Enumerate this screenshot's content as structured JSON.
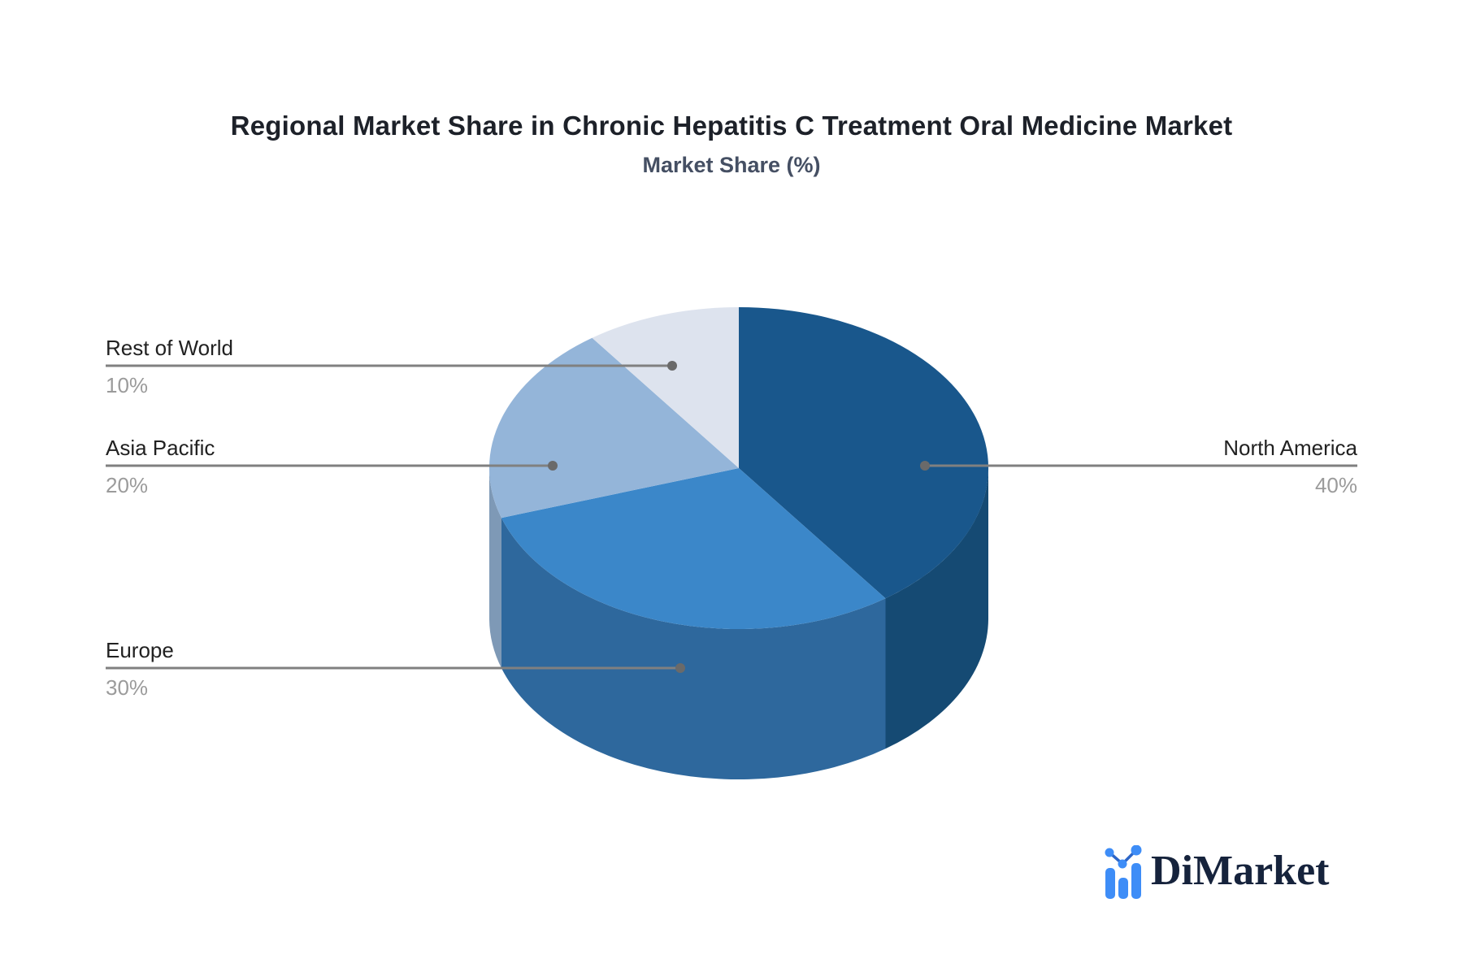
{
  "chart_data": {
    "type": "pie",
    "title": "Regional Market Share in Chronic Hepatitis C Treatment Oral Medicine Market",
    "subtitle": "Market Share (%)",
    "unit": "%",
    "style": "3d-pie",
    "direction": "clockwise",
    "start_angle_deg": 0,
    "legend": "none",
    "labels": "leader-lines",
    "slices": [
      {
        "label": "North America",
        "value": 40,
        "pct_label": "40%",
        "color": "#19578c",
        "side_color": "#154a73"
      },
      {
        "label": "Europe",
        "value": 30,
        "pct_label": "30%",
        "color": "#3b87c9",
        "side_color": "#2e689d"
      },
      {
        "label": "Asia Pacific",
        "value": 20,
        "pct_label": "20%",
        "color": "#94b5d9",
        "side_color": "#7e99b6"
      },
      {
        "label": "Rest of World",
        "value": 10,
        "pct_label": "10%",
        "color": "#dde3ee",
        "side_color": "#b9c1cf"
      }
    ],
    "leader_line_color": "#808080",
    "leader_dot_color": "#6a6a6a"
  },
  "logo": {
    "brand": "DiMarket",
    "icon": "bar-chart-line-logo-icon",
    "icon_color": "#3e8df7",
    "icon_line_color": "#2d66c8"
  }
}
